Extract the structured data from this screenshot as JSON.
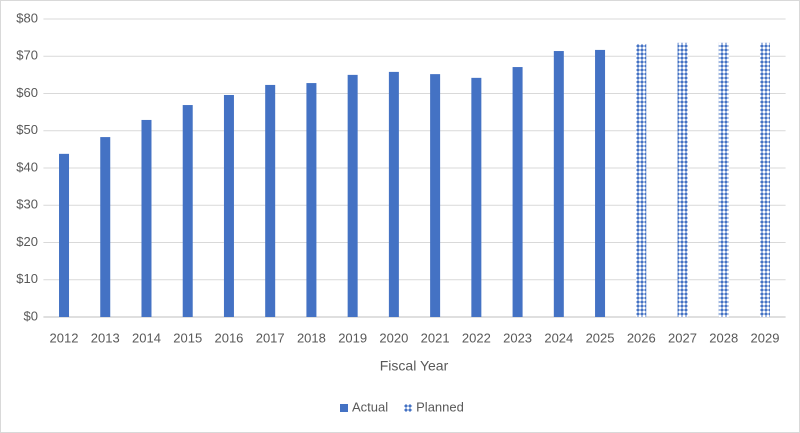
{
  "chart_data": {
    "type": "bar",
    "x_label": "Fiscal Year",
    "categories": [
      "2012",
      "2013",
      "2014",
      "2015",
      "2016",
      "2017",
      "2018",
      "2019",
      "2020",
      "2021",
      "2022",
      "2023",
      "2024",
      "2025",
      "2026",
      "2027",
      "2028",
      "2029"
    ],
    "series": [
      {
        "name": "Actual",
        "color": "#4472c4",
        "hatch": false,
        "values": [
          43.8,
          48.3,
          52.9,
          56.9,
          59.6,
          62.3,
          62.8,
          65.0,
          65.8,
          65.2,
          64.2,
          67.1,
          71.4,
          71.7,
          null,
          null,
          null,
          null
        ]
      },
      {
        "name": "Planned",
        "color": "#4472c4",
        "hatch": true,
        "values": [
          null,
          null,
          null,
          null,
          null,
          null,
          null,
          null,
          null,
          null,
          null,
          null,
          null,
          null,
          73.3,
          73.6,
          73.6,
          73.6
        ]
      }
    ],
    "ylim": [
      0,
      80
    ],
    "yticks": [
      {
        "value": 0,
        "label": "$0"
      },
      {
        "value": 10,
        "label": "$10"
      },
      {
        "value": 20,
        "label": "$20"
      },
      {
        "value": 30,
        "label": "$30"
      },
      {
        "value": 40,
        "label": "$40"
      },
      {
        "value": 50,
        "label": "$50"
      },
      {
        "value": 60,
        "label": "$60"
      },
      {
        "value": 70,
        "label": "$70"
      },
      {
        "value": 80,
        "label": "$80"
      }
    ],
    "grid": true,
    "legend": "bottom"
  }
}
